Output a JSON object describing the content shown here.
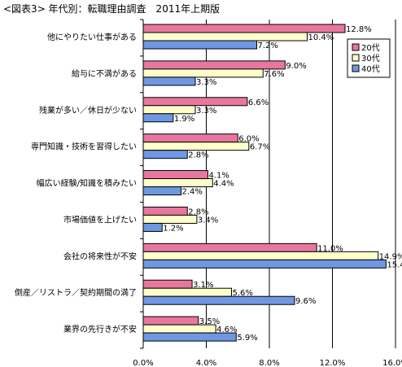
{
  "chart_data": {
    "type": "bar",
    "orientation": "horizontal",
    "title": "<図表3> 年代別：転職理由調査　2011年上期版",
    "categories": [
      "他にやりたい仕事がある",
      "給与に不満がある",
      "残業が多い／休日が少ない",
      "専門知識・技術を習得したい",
      "幅広い経験/知識を積みたい",
      "市場価値を上げたい",
      "会社の将来性が不安",
      "倒産／リストラ／契約期間の満了",
      "業界の先行きが不安"
    ],
    "series": [
      {
        "name": "20代",
        "color": "#e8779f",
        "values": [
          12.8,
          9.0,
          6.6,
          6.0,
          4.1,
          2.8,
          11.0,
          3.1,
          3.5
        ]
      },
      {
        "name": "30代",
        "color": "#ffffcc",
        "values": [
          10.4,
          7.6,
          3.3,
          6.7,
          4.4,
          3.4,
          14.9,
          5.6,
          4.6
        ]
      },
      {
        "name": "40代",
        "color": "#6f97e3",
        "values": [
          7.2,
          3.3,
          1.9,
          2.8,
          2.4,
          1.2,
          15.4,
          9.6,
          5.9
        ]
      }
    ],
    "xlim": [
      0,
      16
    ],
    "xticks": [
      "0.0%",
      "4.0%",
      "8.0%",
      "12.0%",
      "16.0%"
    ],
    "tick_values": [
      0,
      4,
      8,
      12,
      16
    ],
    "value_suffix": "%",
    "grid": true,
    "legend_position": "top-right"
  }
}
